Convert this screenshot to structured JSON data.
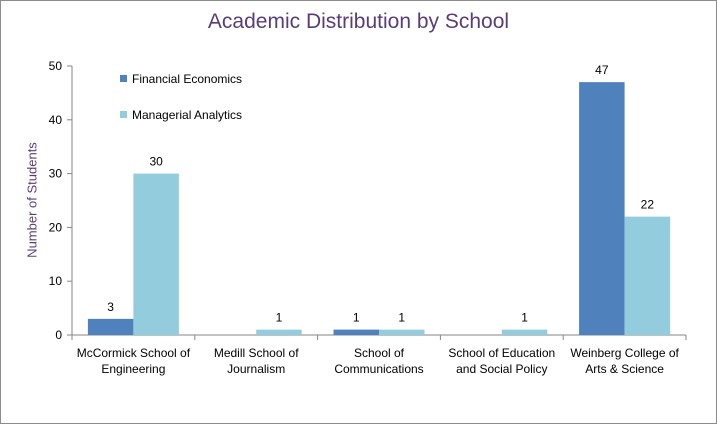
{
  "chart_data": {
    "type": "bar",
    "title": "Academic Distribution by School",
    "xlabel": "",
    "ylabel": "Number of Students",
    "ylim": [
      0,
      50
    ],
    "yticks": [
      0,
      10,
      20,
      30,
      40,
      50
    ],
    "grid": false,
    "legend_position": "top-left",
    "categories": [
      [
        "McCormick School of",
        "Engineering"
      ],
      [
        "Medill School of",
        "Journalism"
      ],
      [
        "School of",
        "Communications"
      ],
      [
        "School of Education",
        "and Social Policy"
      ],
      [
        "Weinberg College of",
        "Arts & Science"
      ]
    ],
    "series": [
      {
        "name": "Financial Economics",
        "color": "#4f81bd",
        "values": [
          3,
          0,
          1,
          0,
          47
        ],
        "labels": [
          "3",
          "",
          "1",
          "",
          "47"
        ]
      },
      {
        "name": "Managerial Analytics",
        "color": "#93cddd",
        "values": [
          30,
          1,
          1,
          1,
          22
        ],
        "labels": [
          "30",
          "1",
          "1",
          "1",
          "22"
        ]
      }
    ]
  }
}
